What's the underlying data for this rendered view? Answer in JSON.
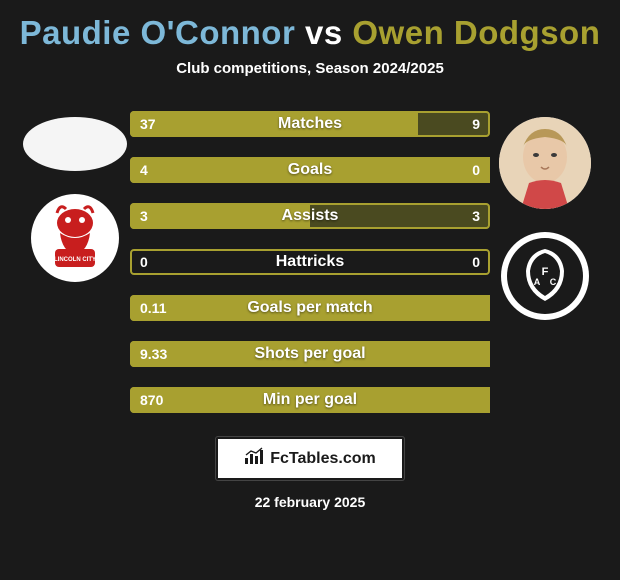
{
  "title": {
    "player1": "Paudie O'Connor",
    "vs": "vs",
    "player2": "Owen Dodgson",
    "color_player1": "#7db8d8",
    "color_vs": "#ffffff",
    "color_player2": "#a8a030",
    "fontsize": 33,
    "fontweight": 800
  },
  "subtitle": {
    "text": "Club competitions, Season 2024/2025",
    "color": "#ffffff",
    "fontsize": 15
  },
  "background_color": "#1a1a1a",
  "bar_style": {
    "height": 26,
    "gap": 20,
    "border_radius": 4,
    "label_color": "#ffffff",
    "label_fontsize": 16,
    "value_fontsize": 14,
    "left_fill_color": "#a8a030",
    "right_fill_color": "#4a4a20",
    "border_color": "#a8a030",
    "empty_fill_color": "transparent"
  },
  "bars": [
    {
      "label": "Matches",
      "left": "37",
      "right": "9",
      "left_pct": 80,
      "right_pct": 20
    },
    {
      "label": "Goals",
      "left": "4",
      "right": "0",
      "left_pct": 100,
      "right_pct": 0
    },
    {
      "label": "Assists",
      "left": "3",
      "right": "3",
      "left_pct": 50,
      "right_pct": 50
    },
    {
      "label": "Hattricks",
      "left": "0",
      "right": "0",
      "left_pct": 0,
      "right_pct": 0
    },
    {
      "label": "Goals per match",
      "left": "0.11",
      "right": "",
      "left_pct": 100,
      "right_pct": 0
    },
    {
      "label": "Shots per goal",
      "left": "9.33",
      "right": "",
      "left_pct": 100,
      "right_pct": 0
    },
    {
      "label": "Min per goal",
      "left": "870",
      "right": "",
      "left_pct": 100,
      "right_pct": 0
    }
  ],
  "left_side": {
    "photo_bg": "#f5f5f5",
    "crest_primary": "#c81e1e",
    "crest_bg": "#ffffff",
    "crest_text": "LINCOLN CITY"
  },
  "right_side": {
    "photo_bg": "#e8d4b8",
    "crest_primary": "#1a1a1a",
    "crest_bg": "#ffffff",
    "crest_letters": "AFC"
  },
  "footer": {
    "brand": "FcTables.com",
    "date": "22 february 2025",
    "badge_bg": "#ffffff",
    "badge_text_color": "#1a1a1a",
    "date_color": "#ffffff"
  }
}
